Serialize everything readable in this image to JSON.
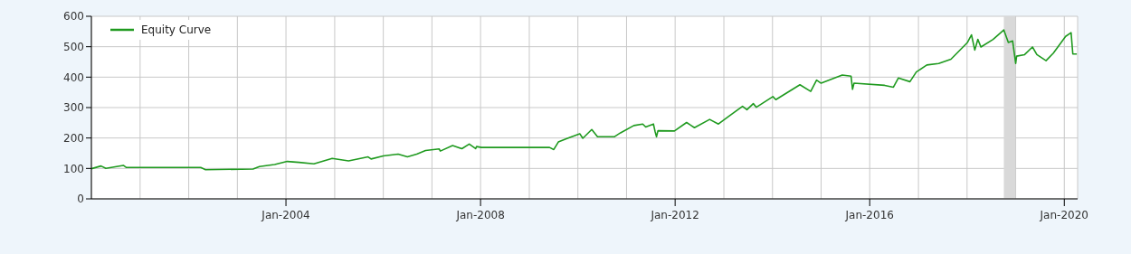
{
  "chart_data": {
    "type": "line",
    "x": [
      "2000-01-01",
      "2000-03-13",
      "2000-04-19",
      "2000-08-28",
      "2000-09-20",
      "2002-04-01",
      "2002-05-07",
      "2003-04-29",
      "2003-06-16",
      "2003-10-08",
      "2004-01-11",
      "2004-04-08",
      "2004-07-29",
      "2004-12-13",
      "2005-04-15",
      "2005-09-09",
      "2005-10-01",
      "2006-01-01",
      "2006-04-22",
      "2006-07-01",
      "2006-09-09",
      "2006-11-14",
      "2007-02-25",
      "2007-03-05",
      "2007-06-05",
      "2007-08-14",
      "2007-10-08",
      "2007-11-25",
      "2007-12-02",
      "2008-01-08",
      "2009-06-02",
      "2009-07-04",
      "2009-08-07",
      "2009-10-15",
      "2010-01-15",
      "2010-02-07",
      "2010-04-15",
      "2010-05-28",
      "2010-10-01",
      "2010-11-17",
      "2011-02-25",
      "2011-05-03",
      "2011-05-25",
      "2011-07-22",
      "2011-08-03",
      "2011-08-14",
      "2011-08-25",
      "2011-12-27",
      "2012-03-27",
      "2012-05-25",
      "2012-09-16",
      "2012-11-21",
      "2013-02-21",
      "2013-05-21",
      "2013-06-23",
      "2013-08-10",
      "2013-09-02",
      "2014-01-04",
      "2014-01-26",
      "2014-07-26",
      "2014-10-15",
      "2014-11-28",
      "2015-01-01",
      "2015-06-09",
      "2015-08-14",
      "2015-08-25",
      "2015-09-05",
      "2016-04-22",
      "2016-06-27",
      "2016-08-03",
      "2016-10-29",
      "2016-12-16",
      "2017-03-05",
      "2017-06-02",
      "2017-09-02",
      "2018-01-04",
      "2018-02-03",
      "2018-02-28",
      "2018-03-23",
      "2018-04-15",
      "2018-07-15",
      "2018-10-04",
      "2018-11-07",
      "2018-12-09",
      "2019-01-01",
      "2019-01-08",
      "2019-03-09",
      "2019-05-07",
      "2019-06-09",
      "2019-08-17",
      "2019-10-11",
      "2020-01-11",
      "2020-02-21",
      "2020-03-05",
      "2020-04-04"
    ],
    "series": [
      {
        "name": "Equity Curve",
        "color": "#1f9a1f",
        "values": [
          99,
          108,
          100,
          110,
          103,
          103,
          96,
          98,
          106,
          113,
          123,
          120,
          115,
          133,
          125,
          138,
          131,
          141,
          147,
          138,
          147,
          159,
          164,
          157,
          175,
          165,
          180,
          165,
          172,
          169,
          169,
          162,
          187,
          199,
          214,
          199,
          228,
          204,
          204,
          217,
          241,
          246,
          236,
          246,
          222,
          204,
          224,
          223,
          251,
          234,
          261,
          246,
          276,
          304,
          293,
          313,
          301,
          336,
          326,
          375,
          353,
          390,
          380,
          407,
          403,
          360,
          380,
          373,
          367,
          397,
          385,
          417,
          440,
          445,
          459,
          514,
          539,
          489,
          524,
          499,
          524,
          555,
          514,
          519,
          445,
          469,
          474,
          499,
          474,
          454,
          479,
          534,
          546,
          476,
          476
        ]
      }
    ],
    "xlim": [
      "2000-01-01",
      "2020-04-10"
    ],
    "xticks": [
      {
        "value": "2001-01-01",
        "label": null
      },
      {
        "value": "2002-01-01",
        "label": null
      },
      {
        "value": "2003-01-01",
        "label": null
      },
      {
        "value": "2004-01-01",
        "label": "Jan-2004"
      },
      {
        "value": "2005-01-01",
        "label": null
      },
      {
        "value": "2006-01-01",
        "label": null
      },
      {
        "value": "2007-01-01",
        "label": null
      },
      {
        "value": "2008-01-01",
        "label": "Jan-2008"
      },
      {
        "value": "2009-01-01",
        "label": null
      },
      {
        "value": "2010-01-01",
        "label": null
      },
      {
        "value": "2011-01-01",
        "label": null
      },
      {
        "value": "2012-01-01",
        "label": "Jan-2012"
      },
      {
        "value": "2013-01-01",
        "label": null
      },
      {
        "value": "2014-01-01",
        "label": null
      },
      {
        "value": "2015-01-01",
        "label": null
      },
      {
        "value": "2016-01-01",
        "label": "Jan-2016"
      },
      {
        "value": "2017-01-01",
        "label": null
      },
      {
        "value": "2018-01-01",
        "label": null
      },
      {
        "value": "2019-01-01",
        "label": null
      },
      {
        "value": "2020-01-01",
        "label": "Jan-2020"
      }
    ],
    "ylim": [
      0,
      600
    ],
    "yticks": [
      0,
      100,
      200,
      300,
      400,
      500,
      600
    ],
    "bands": [
      {
        "axis": "x",
        "from": "2018-10-04",
        "to": "2018-12-30",
        "color": "#d9d9d9"
      }
    ],
    "grid": true,
    "legend": "top left",
    "marker": "none",
    "line_style": "solid"
  }
}
